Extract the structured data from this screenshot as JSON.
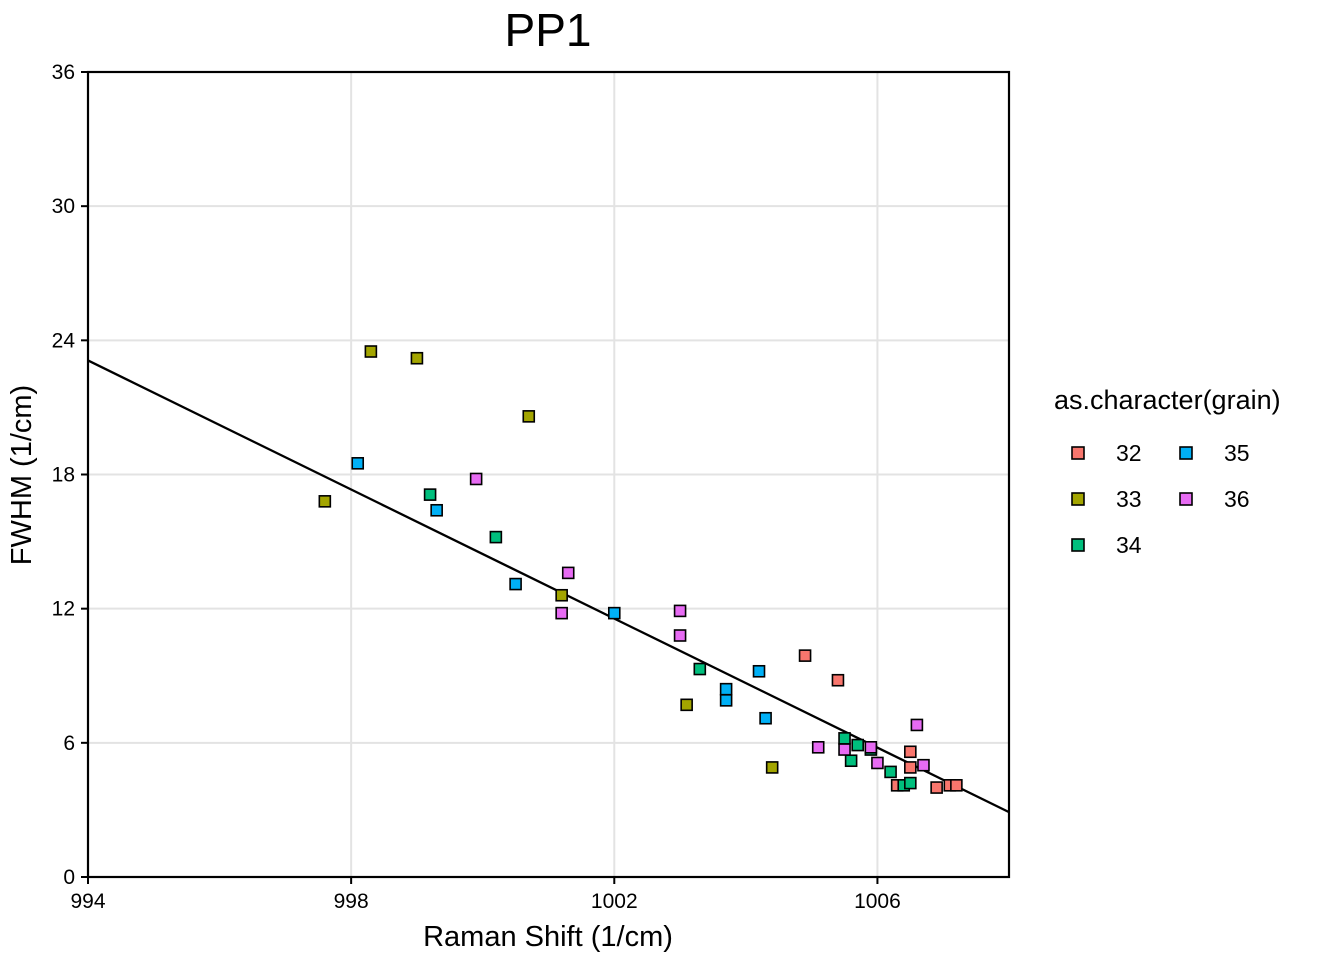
{
  "chart_data": {
    "type": "scatter",
    "title": "PP1",
    "xlabel": "Raman Shift (1/cm)",
    "ylabel": "FWHM (1/cm)",
    "xlim": [
      994,
      1008
    ],
    "ylim": [
      0,
      36
    ],
    "xticks": [
      994,
      998,
      1002,
      1006
    ],
    "yticks": [
      0,
      6,
      12,
      18,
      24,
      30,
      36
    ],
    "grid": true,
    "legend": {
      "title": "as.character(grain)",
      "placement": "right",
      "entries": [
        "32",
        "33",
        "34",
        "35",
        "36"
      ]
    },
    "colors": {
      "32": "#F8766D",
      "33": "#A3A500",
      "34": "#00BF7D",
      "35": "#00B0F6",
      "36": "#E76BF3"
    },
    "series": [
      {
        "name": "32",
        "points": [
          [
            1004.9,
            9.9
          ],
          [
            1005.4,
            8.8
          ],
          [
            1006.5,
            5.6
          ],
          [
            1006.5,
            4.9
          ],
          [
            1006.3,
            4.1
          ],
          [
            1006.9,
            4.0
          ],
          [
            1007.1,
            4.1
          ],
          [
            1007.2,
            4.1
          ]
        ]
      },
      {
        "name": "33",
        "points": [
          [
            997.6,
            16.8
          ],
          [
            998.3,
            23.5
          ],
          [
            999.0,
            23.2
          ],
          [
            1000.7,
            20.6
          ],
          [
            1001.2,
            12.6
          ],
          [
            1003.1,
            7.7
          ],
          [
            1004.4,
            4.9
          ]
        ]
      },
      {
        "name": "34",
        "points": [
          [
            999.2,
            17.1
          ],
          [
            1000.2,
            15.2
          ],
          [
            1003.3,
            9.3
          ],
          [
            1005.5,
            6.2
          ],
          [
            1005.6,
            5.2
          ],
          [
            1005.7,
            5.9
          ],
          [
            1005.9,
            5.7
          ],
          [
            1006.2,
            4.7
          ],
          [
            1006.4,
            4.1
          ],
          [
            1006.5,
            4.2
          ]
        ]
      },
      {
        "name": "35",
        "points": [
          [
            998.1,
            18.5
          ],
          [
            999.3,
            16.4
          ],
          [
            1000.5,
            13.1
          ],
          [
            1002.0,
            11.8
          ],
          [
            1003.7,
            8.4
          ],
          [
            1003.7,
            7.9
          ],
          [
            1004.2,
            9.2
          ],
          [
            1004.3,
            7.1
          ]
        ]
      },
      {
        "name": "36",
        "points": [
          [
            999.9,
            17.8
          ],
          [
            1001.2,
            11.8
          ],
          [
            1001.3,
            13.6
          ],
          [
            1003.0,
            11.9
          ],
          [
            1003.0,
            10.8
          ],
          [
            1005.1,
            5.8
          ],
          [
            1005.5,
            5.7
          ],
          [
            1005.9,
            5.8
          ],
          [
            1006.0,
            5.1
          ],
          [
            1006.6,
            6.8
          ],
          [
            1006.7,
            5.0
          ]
        ]
      }
    ],
    "trendline": {
      "x": [
        994,
        1008
      ],
      "y": [
        23.1,
        2.9
      ]
    }
  }
}
